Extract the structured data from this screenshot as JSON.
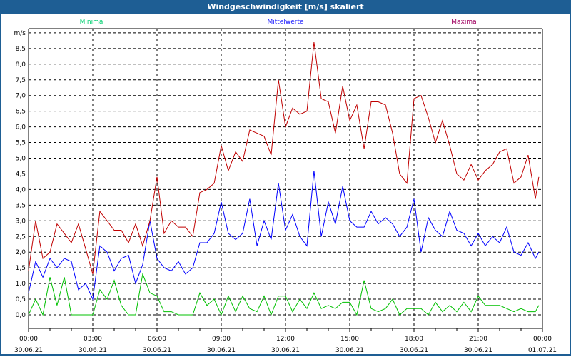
{
  "chart_data": {
    "type": "line",
    "title": "Windgeschwindigkeit [m/s] skaliert",
    "ylabel": "m/s",
    "ylim": [
      0,
      9
    ],
    "yticks": [
      "0,0",
      "0,5",
      "1,0",
      "1,5",
      "2,0",
      "2,5",
      "3,0",
      "3,5",
      "4,0",
      "4,5",
      "5,0",
      "5,5",
      "6,0",
      "6,5",
      "7,0",
      "7,5",
      "8,0",
      "8,5"
    ],
    "xlim_hours": [
      0,
      24
    ],
    "xticks": [
      {
        "time": "00:00",
        "date": "30.06.21"
      },
      {
        "time": "03:00",
        "date": "30.06.21"
      },
      {
        "time": "06:00",
        "date": "30.06.21"
      },
      {
        "time": "09:00",
        "date": "30.06.21"
      },
      {
        "time": "12:00",
        "date": "30.06.21"
      },
      {
        "time": "15:00",
        "date": "30.06.21"
      },
      {
        "time": "18:00",
        "date": "30.06.21"
      },
      {
        "time": "21:00",
        "date": "30.06.21"
      },
      {
        "time": "00:00",
        "date": "01.07.21"
      }
    ],
    "grid": true,
    "legend_placement": "top",
    "x_hours": [
      0,
      0.33,
      0.67,
      1,
      1.33,
      1.67,
      2,
      2.33,
      2.67,
      3,
      3.33,
      3.67,
      4,
      4.33,
      4.67,
      5,
      5.33,
      5.67,
      6,
      6.33,
      6.67,
      7,
      7.33,
      7.67,
      8,
      8.33,
      8.67,
      9,
      9.33,
      9.67,
      10,
      10.33,
      10.67,
      11,
      11.33,
      11.67,
      12,
      12.33,
      12.67,
      13,
      13.33,
      13.67,
      14,
      14.33,
      14.67,
      15,
      15.33,
      15.67,
      16,
      16.33,
      16.67,
      17,
      17.33,
      17.67,
      18,
      18.33,
      18.67,
      19,
      19.33,
      19.67,
      20,
      20.33,
      20.67,
      21,
      21.33,
      21.67,
      22,
      22.33,
      22.67,
      23,
      23.33,
      23.67,
      23.83
    ],
    "series": [
      {
        "name": "Minima",
        "color": "#00c000",
        "legend_color": "#00d070",
        "values": [
          0.0,
          0.5,
          0.0,
          1.2,
          0.3,
          1.2,
          0.0,
          0.0,
          0.0,
          0.0,
          0.8,
          0.5,
          1.1,
          0.3,
          0.0,
          0.0,
          1.3,
          0.7,
          0.6,
          0.1,
          0.1,
          0.0,
          0.0,
          0.0,
          0.7,
          0.3,
          0.5,
          0.0,
          0.6,
          0.1,
          0.6,
          0.2,
          0.1,
          0.6,
          0.0,
          0.6,
          0.6,
          0.1,
          0.5,
          0.2,
          0.7,
          0.2,
          0.3,
          0.2,
          0.4,
          0.4,
          0.0,
          1.1,
          0.2,
          0.1,
          0.2,
          0.5,
          0.0,
          0.2,
          0.2,
          0.2,
          0.0,
          0.4,
          0.1,
          0.3,
          0.1,
          0.4,
          0.1,
          0.6,
          0.3,
          0.3,
          0.3,
          0.2,
          0.1,
          0.2,
          0.1,
          0.1,
          0.3
        ]
      },
      {
        "name": "Mittelwerte",
        "color": "#0000ff",
        "legend_color": "#2020ff",
        "values": [
          0.7,
          1.7,
          1.2,
          1.8,
          1.5,
          1.8,
          1.7,
          0.8,
          1.0,
          0.5,
          2.2,
          2.0,
          1.4,
          1.8,
          1.9,
          1.0,
          1.6,
          3.0,
          1.8,
          1.5,
          1.4,
          1.7,
          1.3,
          1.5,
          2.3,
          2.3,
          2.6,
          3.6,
          2.6,
          2.4,
          2.6,
          3.7,
          2.2,
          3.0,
          2.4,
          4.2,
          2.7,
          3.2,
          2.5,
          2.2,
          4.6,
          2.5,
          3.6,
          2.9,
          4.1,
          3.0,
          2.8,
          2.8,
          3.3,
          2.9,
          3.1,
          2.9,
          2.5,
          2.8,
          3.7,
          2.0,
          3.1,
          2.7,
          2.5,
          3.3,
          2.7,
          2.6,
          2.2,
          2.6,
          2.2,
          2.5,
          2.3,
          2.8,
          2.0,
          1.9,
          2.3,
          1.8,
          2.0
        ]
      },
      {
        "name": "Maxima",
        "color": "#c00000",
        "legend_color": "#a00060",
        "values": [
          1.4,
          3.0,
          1.8,
          2.0,
          2.9,
          2.6,
          2.3,
          2.9,
          2.1,
          1.3,
          3.3,
          3.0,
          2.7,
          2.7,
          2.3,
          2.9,
          2.2,
          3.0,
          4.4,
          2.6,
          3.0,
          2.8,
          2.8,
          2.5,
          3.9,
          4.0,
          4.2,
          5.4,
          4.6,
          5.2,
          4.9,
          5.9,
          5.8,
          5.7,
          5.1,
          7.5,
          6.0,
          6.6,
          6.4,
          6.5,
          8.7,
          6.9,
          6.8,
          5.8,
          7.3,
          6.2,
          6.7,
          5.3,
          6.8,
          6.8,
          6.7,
          5.8,
          4.5,
          4.2,
          6.9,
          7.0,
          6.3,
          5.5,
          6.2,
          5.4,
          4.5,
          4.3,
          4.8,
          4.3,
          4.6,
          4.8,
          5.2,
          5.3,
          4.2,
          4.4,
          5.1,
          3.7,
          4.4
        ]
      }
    ]
  }
}
